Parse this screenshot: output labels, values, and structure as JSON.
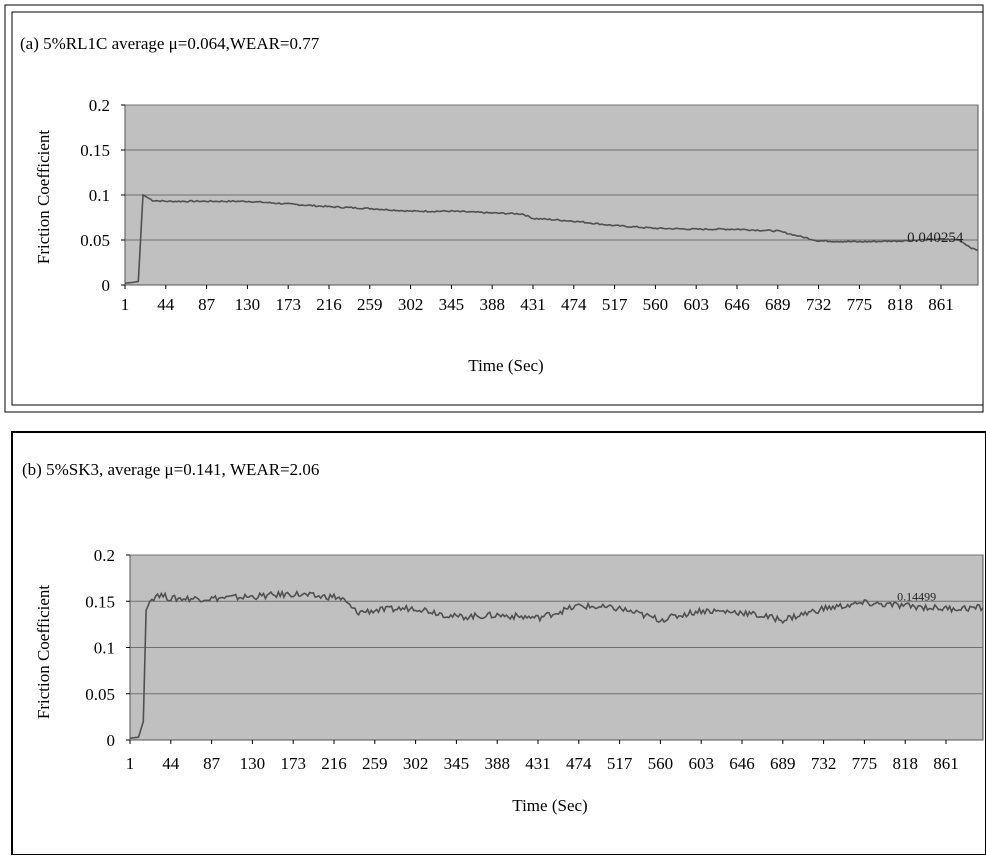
{
  "chart_data": [
    {
      "type": "line",
      "title": "(a) 5%RL1C average   μ=0.064,WEAR=0.77",
      "xlabel": "Time (Sec)",
      "ylabel": "Friction Coefficient",
      "ylim": [
        0,
        0.2
      ],
      "yticks": [
        "0",
        "0.05",
        "0.1",
        "0.15",
        "0.2"
      ],
      "xlim": [
        1,
        900
      ],
      "xticks": [
        "1",
        "44",
        "87",
        "130",
        "173",
        "216",
        "259",
        "302",
        "345",
        "388",
        "431",
        "474",
        "517",
        "560",
        "603",
        "646",
        "689",
        "732",
        "775",
        "818",
        "861"
      ],
      "grid": true,
      "plot_background": "#c0c0c0",
      "line_color": "#505050",
      "annotation": {
        "text": "0.040254",
        "x": 855,
        "y": 0.052
      },
      "series": [
        {
          "x": [
            1,
            10,
            15,
            20,
            30,
            44,
            87,
            130,
            173,
            216,
            259,
            302,
            345,
            388,
            420,
            431,
            474,
            517,
            560,
            603,
            646,
            689,
            732,
            775,
            818,
            861,
            880,
            895,
            900
          ],
          "y": [
            0.002,
            0.003,
            0.004,
            0.1,
            0.094,
            0.093,
            0.093,
            0.093,
            0.09,
            0.087,
            0.085,
            0.082,
            0.082,
            0.08,
            0.079,
            0.074,
            0.071,
            0.066,
            0.063,
            0.062,
            0.062,
            0.06,
            0.049,
            0.048,
            0.049,
            0.051,
            0.05,
            0.04,
            0.039
          ]
        }
      ]
    },
    {
      "type": "line",
      "title": "(b) 5%SK3, average  μ=0.141, WEAR=2.06",
      "xlabel": "Time (Sec)",
      "ylabel": "Friction Coefficient",
      "ylim": [
        0,
        0.2
      ],
      "yticks": [
        "0",
        "0.05",
        "0.1",
        "0.15",
        "0.2"
      ],
      "xlim": [
        1,
        900
      ],
      "xticks": [
        "1",
        "44",
        "87",
        "130",
        "173",
        "216",
        "259",
        "302",
        "345",
        "388",
        "431",
        "474",
        "517",
        "560",
        "603",
        "646",
        "689",
        "732",
        "775",
        "818",
        "861"
      ],
      "grid": true,
      "plot_background": "#c0c0c0",
      "line_color": "#505050",
      "annotation": {
        "text": "0.14499",
        "x": 830,
        "y": 0.155
      },
      "series": [
        {
          "x": [
            1,
            10,
            15,
            18,
            22,
            30,
            44,
            87,
            130,
            173,
            200,
            216,
            225,
            240,
            259,
            302,
            345,
            388,
            431,
            474,
            517,
            560,
            603,
            646,
            689,
            732,
            775,
            818,
            861,
            900
          ],
          "y": [
            0.002,
            0.003,
            0.02,
            0.14,
            0.15,
            0.158,
            0.153,
            0.153,
            0.155,
            0.158,
            0.155,
            0.155,
            0.152,
            0.138,
            0.14,
            0.143,
            0.133,
            0.135,
            0.132,
            0.145,
            0.142,
            0.13,
            0.14,
            0.138,
            0.13,
            0.142,
            0.148,
            0.145,
            0.142,
            0.143
          ]
        }
      ]
    }
  ]
}
